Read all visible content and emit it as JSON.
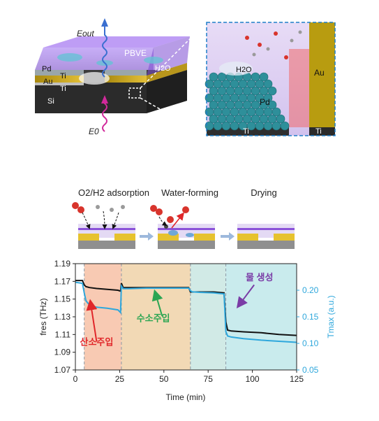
{
  "device": {
    "layer_labels": {
      "pbve": "PBVE",
      "pd": "Pd",
      "ti_top": "Ti",
      "au": "Au",
      "ti_mid": "Ti",
      "si": "Si",
      "water": "H2O"
    },
    "wave_labels": {
      "e_out": "Eout",
      "e_in": "E0"
    },
    "inset_labels": {
      "water": "H2O",
      "pd": "Pd",
      "ti_bottom": "Ti",
      "au": "Au",
      "ti_right": "Ti"
    },
    "colors": {
      "pbve": "#8a52d8",
      "au": "#c9a318",
      "si": "#2b2b2b",
      "pd_atom": "#2e8f9a",
      "inset_border": "#1e7ec8"
    }
  },
  "stages": [
    {
      "label": "O2/H2 adsorption"
    },
    {
      "label": "Water-forming"
    },
    {
      "label": "Drying"
    }
  ],
  "chart_data": {
    "type": "line",
    "xlabel": "Time (min)",
    "ylabel_left": "fres (THz)",
    "ylabel_right": "Tmax (a.u.)",
    "xlim": [
      0,
      125
    ],
    "ylim_left": [
      1.07,
      1.19
    ],
    "ylim_right": [
      0.05,
      0.25
    ],
    "x_ticks": [
      0,
      25,
      50,
      75,
      100,
      125
    ],
    "y_ticks_left": [
      1.07,
      1.09,
      1.11,
      1.13,
      1.15,
      1.17,
      1.19
    ],
    "y_ticks_right": [
      0.05,
      0.1,
      0.15,
      0.2
    ],
    "event_lines": [
      5,
      26,
      65,
      85
    ],
    "regions": [
      {
        "from": 5,
        "to": 26,
        "color": "#f7c1a6"
      },
      {
        "from": 26,
        "to": 65,
        "color": "#f0d2a8"
      },
      {
        "from": 65,
        "to": 85,
        "color": "#c9e6e2"
      },
      {
        "from": 85,
        "to": 125,
        "color": "#bfe7ea"
      }
    ],
    "series": [
      {
        "axis": "left",
        "color": "#111111",
        "x": [
          0,
          4,
          5,
          6,
          8,
          12,
          18,
          24,
          25.5,
          26,
          27,
          30,
          40,
          50,
          60,
          64,
          65,
          66,
          70,
          78,
          84,
          85,
          86,
          88,
          95,
          105,
          115,
          125
        ],
        "y": [
          1.171,
          1.171,
          1.166,
          1.164,
          1.163,
          1.162,
          1.161,
          1.16,
          1.159,
          1.168,
          1.163,
          1.163,
          1.163,
          1.163,
          1.163,
          1.163,
          1.158,
          1.158,
          1.158,
          1.158,
          1.157,
          1.124,
          1.115,
          1.114,
          1.113,
          1.112,
          1.11,
          1.109
        ]
      },
      {
        "axis": "right",
        "color": "#2ea7dc",
        "x": [
          0,
          4,
          5,
          6,
          8,
          12,
          18,
          24,
          25.5,
          26,
          27,
          30,
          40,
          50,
          60,
          64,
          65,
          66,
          70,
          78,
          84,
          85,
          86,
          88,
          95,
          105,
          115,
          125
        ],
        "y": [
          0.215,
          0.213,
          0.195,
          0.18,
          0.172,
          0.168,
          0.166,
          0.163,
          0.158,
          0.208,
          0.203,
          0.203,
          0.204,
          0.204,
          0.204,
          0.204,
          0.199,
          0.197,
          0.196,
          0.195,
          0.193,
          0.122,
          0.114,
          0.112,
          0.109,
          0.106,
          0.104,
          0.102
        ]
      }
    ],
    "annotations": [
      {
        "text": "산소주입",
        "color": "#e0262a",
        "x": 12,
        "y": 1.098
      },
      {
        "text": "수소주입",
        "color": "#2aa552",
        "x": 44,
        "y": 1.125
      },
      {
        "text": "물 생성",
        "color": "#7a3ca6",
        "x": 104,
        "y": 1.171
      }
    ]
  }
}
